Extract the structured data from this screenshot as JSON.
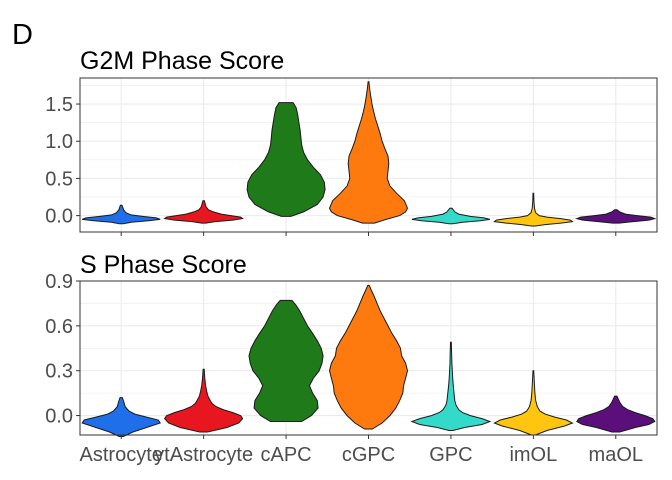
{
  "figure_label": "D",
  "chart_data": [
    {
      "type": "violin",
      "title": "G2M Phase Score",
      "xlabel": "",
      "ylabel": "",
      "ylim": [
        -0.22,
        1.85
      ],
      "yticks": [
        0.0,
        0.5,
        1.0,
        1.5
      ],
      "ytick_labels": [
        "0.0",
        "0.5",
        "1.0",
        "1.5"
      ],
      "grid": true,
      "categories": [
        "Astrocyte",
        "ytAstrocyte",
        "cAPC",
        "cGPC",
        "GPC",
        "imOL",
        "maOL"
      ],
      "series": [
        {
          "category": "Astrocyte",
          "color": "#1F6FEB",
          "min": -0.11,
          "max": 0.14,
          "profile": [
            [
              -0.11,
              0.05
            ],
            [
              -0.09,
              0.25
            ],
            [
              -0.07,
              0.7
            ],
            [
              -0.05,
              1.0
            ],
            [
              -0.03,
              0.9
            ],
            [
              -0.01,
              0.55
            ],
            [
              0.01,
              0.25
            ],
            [
              0.04,
              0.12
            ],
            [
              0.08,
              0.06
            ],
            [
              0.14,
              0.02
            ]
          ]
        },
        {
          "category": "ytAstrocyte",
          "color": "#E8161E",
          "min": -0.1,
          "max": 0.2,
          "profile": [
            [
              -0.1,
              0.05
            ],
            [
              -0.08,
              0.3
            ],
            [
              -0.06,
              0.75
            ],
            [
              -0.04,
              1.0
            ],
            [
              -0.02,
              0.95
            ],
            [
              0.0,
              0.7
            ],
            [
              0.02,
              0.45
            ],
            [
              0.05,
              0.25
            ],
            [
              0.08,
              0.12
            ],
            [
              0.12,
              0.06
            ],
            [
              0.2,
              0.02
            ]
          ]
        },
        {
          "category": "cAPC",
          "color": "#1F7A1A",
          "min": -0.01,
          "max": 1.52,
          "profile": [
            [
              -0.01,
              0.12
            ],
            [
              0.05,
              0.45
            ],
            [
              0.15,
              0.8
            ],
            [
              0.25,
              0.95
            ],
            [
              0.35,
              1.0
            ],
            [
              0.45,
              0.98
            ],
            [
              0.55,
              0.88
            ],
            [
              0.65,
              0.7
            ],
            [
              0.75,
              0.55
            ],
            [
              0.85,
              0.45
            ],
            [
              0.95,
              0.4
            ],
            [
              1.05,
              0.38
            ],
            [
              1.15,
              0.36
            ],
            [
              1.25,
              0.33
            ],
            [
              1.35,
              0.3
            ],
            [
              1.45,
              0.26
            ],
            [
              1.52,
              0.18
            ]
          ]
        },
        {
          "category": "cGPC",
          "color": "#FF7A0E",
          "min": -0.1,
          "max": 1.8,
          "profile": [
            [
              -0.1,
              0.15
            ],
            [
              -0.05,
              0.45
            ],
            [
              0.0,
              0.8
            ],
            [
              0.05,
              0.95
            ],
            [
              0.1,
              1.0
            ],
            [
              0.2,
              0.92
            ],
            [
              0.3,
              0.72
            ],
            [
              0.4,
              0.55
            ],
            [
              0.5,
              0.48
            ],
            [
              0.6,
              0.5
            ],
            [
              0.7,
              0.52
            ],
            [
              0.8,
              0.5
            ],
            [
              0.9,
              0.42
            ],
            [
              1.0,
              0.35
            ],
            [
              1.1,
              0.3
            ],
            [
              1.2,
              0.24
            ],
            [
              1.3,
              0.18
            ],
            [
              1.4,
              0.13
            ],
            [
              1.5,
              0.09
            ],
            [
              1.6,
              0.06
            ],
            [
              1.7,
              0.03
            ],
            [
              1.8,
              0.01
            ]
          ]
        },
        {
          "category": "GPC",
          "color": "#33DAC9",
          "min": -0.11,
          "max": 0.1,
          "profile": [
            [
              -0.11,
              0.05
            ],
            [
              -0.09,
              0.3
            ],
            [
              -0.07,
              0.75
            ],
            [
              -0.05,
              1.0
            ],
            [
              -0.03,
              0.85
            ],
            [
              -0.01,
              0.5
            ],
            [
              0.02,
              0.2
            ],
            [
              0.05,
              0.1
            ],
            [
              0.1,
              0.03
            ]
          ]
        },
        {
          "category": "imOL",
          "color": "#FFC50F",
          "min": -0.14,
          "max": 0.3,
          "profile": [
            [
              -0.14,
              0.05
            ],
            [
              -0.12,
              0.3
            ],
            [
              -0.1,
              0.7
            ],
            [
              -0.08,
              1.0
            ],
            [
              -0.06,
              0.95
            ],
            [
              -0.04,
              0.7
            ],
            [
              -0.02,
              0.35
            ],
            [
              0.0,
              0.15
            ],
            [
              0.04,
              0.06
            ],
            [
              0.1,
              0.03
            ],
            [
              0.2,
              0.015
            ],
            [
              0.3,
              0.01
            ]
          ]
        },
        {
          "category": "maOL",
          "color": "#5A0F7A",
          "min": -0.1,
          "max": 0.08,
          "profile": [
            [
              -0.1,
              0.08
            ],
            [
              -0.08,
              0.45
            ],
            [
              -0.06,
              0.85
            ],
            [
              -0.04,
              1.0
            ],
            [
              -0.02,
              0.9
            ],
            [
              0.0,
              0.55
            ],
            [
              0.02,
              0.25
            ],
            [
              0.05,
              0.1
            ],
            [
              0.08,
              0.03
            ]
          ]
        }
      ]
    },
    {
      "type": "violin",
      "title": "S Phase Score",
      "xlabel": "",
      "ylabel": "",
      "ylim": [
        -0.13,
        0.9
      ],
      "yticks": [
        0.0,
        0.3,
        0.6,
        0.9
      ],
      "ytick_labels": [
        "0.0",
        "0.3",
        "0.6",
        "0.9"
      ],
      "grid": true,
      "categories": [
        "Astrocyte",
        "ytAstrocyte",
        "cAPC",
        "cGPC",
        "GPC",
        "imOL",
        "maOL"
      ],
      "category_labels": [
        "Astrocyte",
        "ytAstrocyte",
        "cAPC",
        "cGPC",
        "GPC",
        "imOL",
        "maOL"
      ],
      "series": [
        {
          "category": "Astrocyte",
          "color": "#1F6FEB",
          "min": -0.14,
          "max": 0.12,
          "profile": [
            [
              -0.14,
              0.05
            ],
            [
              -0.11,
              0.3
            ],
            [
              -0.08,
              0.65
            ],
            [
              -0.05,
              1.0
            ],
            [
              -0.03,
              0.95
            ],
            [
              -0.01,
              0.65
            ],
            [
              0.01,
              0.35
            ],
            [
              0.03,
              0.2
            ],
            [
              0.06,
              0.1
            ],
            [
              0.09,
              0.07
            ],
            [
              0.12,
              0.03
            ]
          ]
        },
        {
          "category": "ytAstrocyte",
          "color": "#E8161E",
          "min": -0.11,
          "max": 0.31,
          "profile": [
            [
              -0.11,
              0.1
            ],
            [
              -0.08,
              0.6
            ],
            [
              -0.05,
              0.9
            ],
            [
              -0.02,
              1.0
            ],
            [
              0.0,
              0.95
            ],
            [
              0.02,
              0.75
            ],
            [
              0.04,
              0.5
            ],
            [
              0.06,
              0.32
            ],
            [
              0.08,
              0.22
            ],
            [
              0.1,
              0.17
            ],
            [
              0.13,
              0.11
            ],
            [
              0.16,
              0.08
            ],
            [
              0.2,
              0.05
            ],
            [
              0.25,
              0.03
            ],
            [
              0.31,
              0.015
            ]
          ]
        },
        {
          "category": "cAPC",
          "color": "#1F7A1A",
          "min": -0.04,
          "max": 0.77,
          "profile": [
            [
              -0.04,
              0.4
            ],
            [
              0.0,
              0.65
            ],
            [
              0.05,
              0.82
            ],
            [
              0.1,
              0.8
            ],
            [
              0.15,
              0.68
            ],
            [
              0.2,
              0.6
            ],
            [
              0.25,
              0.7
            ],
            [
              0.3,
              0.85
            ],
            [
              0.35,
              0.92
            ],
            [
              0.4,
              0.95
            ],
            [
              0.45,
              0.9
            ],
            [
              0.5,
              0.8
            ],
            [
              0.55,
              0.68
            ],
            [
              0.6,
              0.55
            ],
            [
              0.65,
              0.45
            ],
            [
              0.7,
              0.35
            ],
            [
              0.74,
              0.25
            ],
            [
              0.77,
              0.15
            ]
          ]
        },
        {
          "category": "cGPC",
          "color": "#FF7A0E",
          "min": -0.09,
          "max": 0.87,
          "profile": [
            [
              -0.09,
              0.1
            ],
            [
              -0.05,
              0.35
            ],
            [
              0.0,
              0.55
            ],
            [
              0.05,
              0.7
            ],
            [
              0.1,
              0.8
            ],
            [
              0.15,
              0.88
            ],
            [
              0.2,
              0.9
            ],
            [
              0.25,
              0.95
            ],
            [
              0.3,
              1.0
            ],
            [
              0.35,
              0.95
            ],
            [
              0.4,
              0.85
            ],
            [
              0.45,
              0.82
            ],
            [
              0.5,
              0.72
            ],
            [
              0.55,
              0.6
            ],
            [
              0.6,
              0.5
            ],
            [
              0.65,
              0.4
            ],
            [
              0.7,
              0.3
            ],
            [
              0.75,
              0.22
            ],
            [
              0.8,
              0.14
            ],
            [
              0.84,
              0.07
            ],
            [
              0.87,
              0.02
            ]
          ]
        },
        {
          "category": "GPC",
          "color": "#33DAC9",
          "min": -0.1,
          "max": 0.49,
          "profile": [
            [
              -0.1,
              0.05
            ],
            [
              -0.08,
              0.35
            ],
            [
              -0.06,
              0.8
            ],
            [
              -0.04,
              1.0
            ],
            [
              -0.02,
              0.8
            ],
            [
              0.0,
              0.5
            ],
            [
              0.02,
              0.3
            ],
            [
              0.04,
              0.2
            ],
            [
              0.07,
              0.13
            ],
            [
              0.1,
              0.1
            ],
            [
              0.15,
              0.08
            ],
            [
              0.2,
              0.06
            ],
            [
              0.25,
              0.045
            ],
            [
              0.3,
              0.035
            ],
            [
              0.35,
              0.025
            ],
            [
              0.4,
              0.02
            ],
            [
              0.49,
              0.01
            ]
          ]
        },
        {
          "category": "imOL",
          "color": "#FFC50F",
          "min": -0.13,
          "max": 0.3,
          "profile": [
            [
              -0.13,
              0.05
            ],
            [
              -0.1,
              0.35
            ],
            [
              -0.07,
              0.8
            ],
            [
              -0.05,
              1.0
            ],
            [
              -0.03,
              0.85
            ],
            [
              -0.01,
              0.55
            ],
            [
              0.01,
              0.3
            ],
            [
              0.03,
              0.17
            ],
            [
              0.06,
              0.1
            ],
            [
              0.1,
              0.06
            ],
            [
              0.15,
              0.04
            ],
            [
              0.2,
              0.03
            ],
            [
              0.25,
              0.02
            ],
            [
              0.3,
              0.01
            ]
          ]
        },
        {
          "category": "maOL",
          "color": "#5A0F7A",
          "min": -0.11,
          "max": 0.13,
          "profile": [
            [
              -0.11,
              0.1
            ],
            [
              -0.08,
              0.5
            ],
            [
              -0.06,
              0.85
            ],
            [
              -0.04,
              1.0
            ],
            [
              -0.02,
              0.95
            ],
            [
              0.0,
              0.75
            ],
            [
              0.02,
              0.5
            ],
            [
              0.04,
              0.3
            ],
            [
              0.06,
              0.18
            ],
            [
              0.09,
              0.1
            ],
            [
              0.13,
              0.03
            ]
          ]
        }
      ]
    }
  ]
}
